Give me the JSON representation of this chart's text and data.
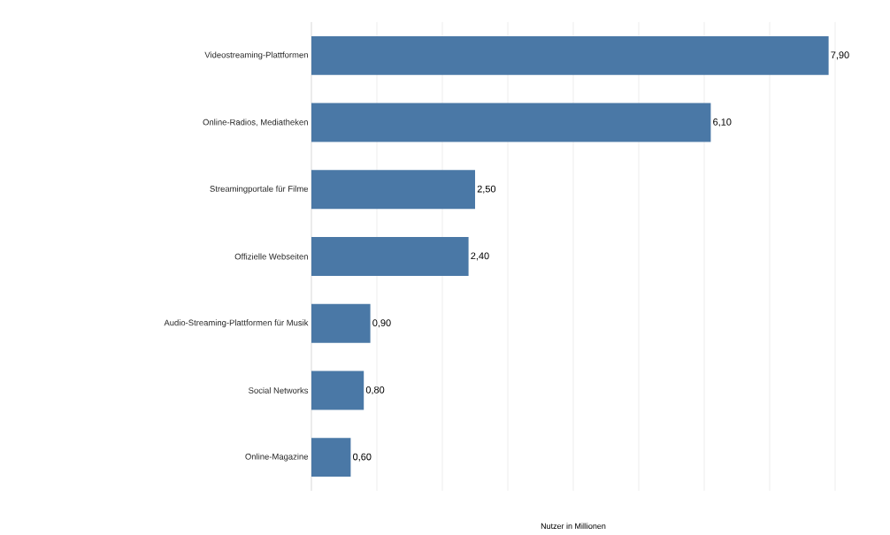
{
  "chart_data": {
    "type": "bar",
    "orientation": "horizontal",
    "xlabel": "Nutzer in Millionen",
    "categories": [
      "Videostreaming-Plattformen",
      "Online-Radios, Mediatheken",
      "Streamingportale für Filme",
      "Offizielle Webseiten",
      "Audio-Streaming-Plattformen für Musik",
      "Social Networks",
      "Online-Magazine"
    ],
    "values": [
      7.9,
      6.1,
      2.5,
      2.4,
      0.9,
      0.8,
      0.6
    ],
    "value_labels": [
      "7,90",
      "6,10",
      "2,50",
      "2,40",
      "0,90",
      "0,80",
      "0,60"
    ],
    "color": "#4a78a6",
    "xlim": [
      0,
      8
    ],
    "xticks": [
      {
        "value": 0,
        "label": null
      },
      {
        "value": 1,
        "label": null
      },
      {
        "value": 2,
        "label": null
      },
      {
        "value": 3,
        "label": null
      },
      {
        "value": 4,
        "label": null
      },
      {
        "value": 5,
        "label": null
      },
      {
        "value": 6,
        "label": null
      },
      {
        "value": 7,
        "label": null
      },
      {
        "value": 8,
        "label": null
      }
    ],
    "grid": "x"
  }
}
